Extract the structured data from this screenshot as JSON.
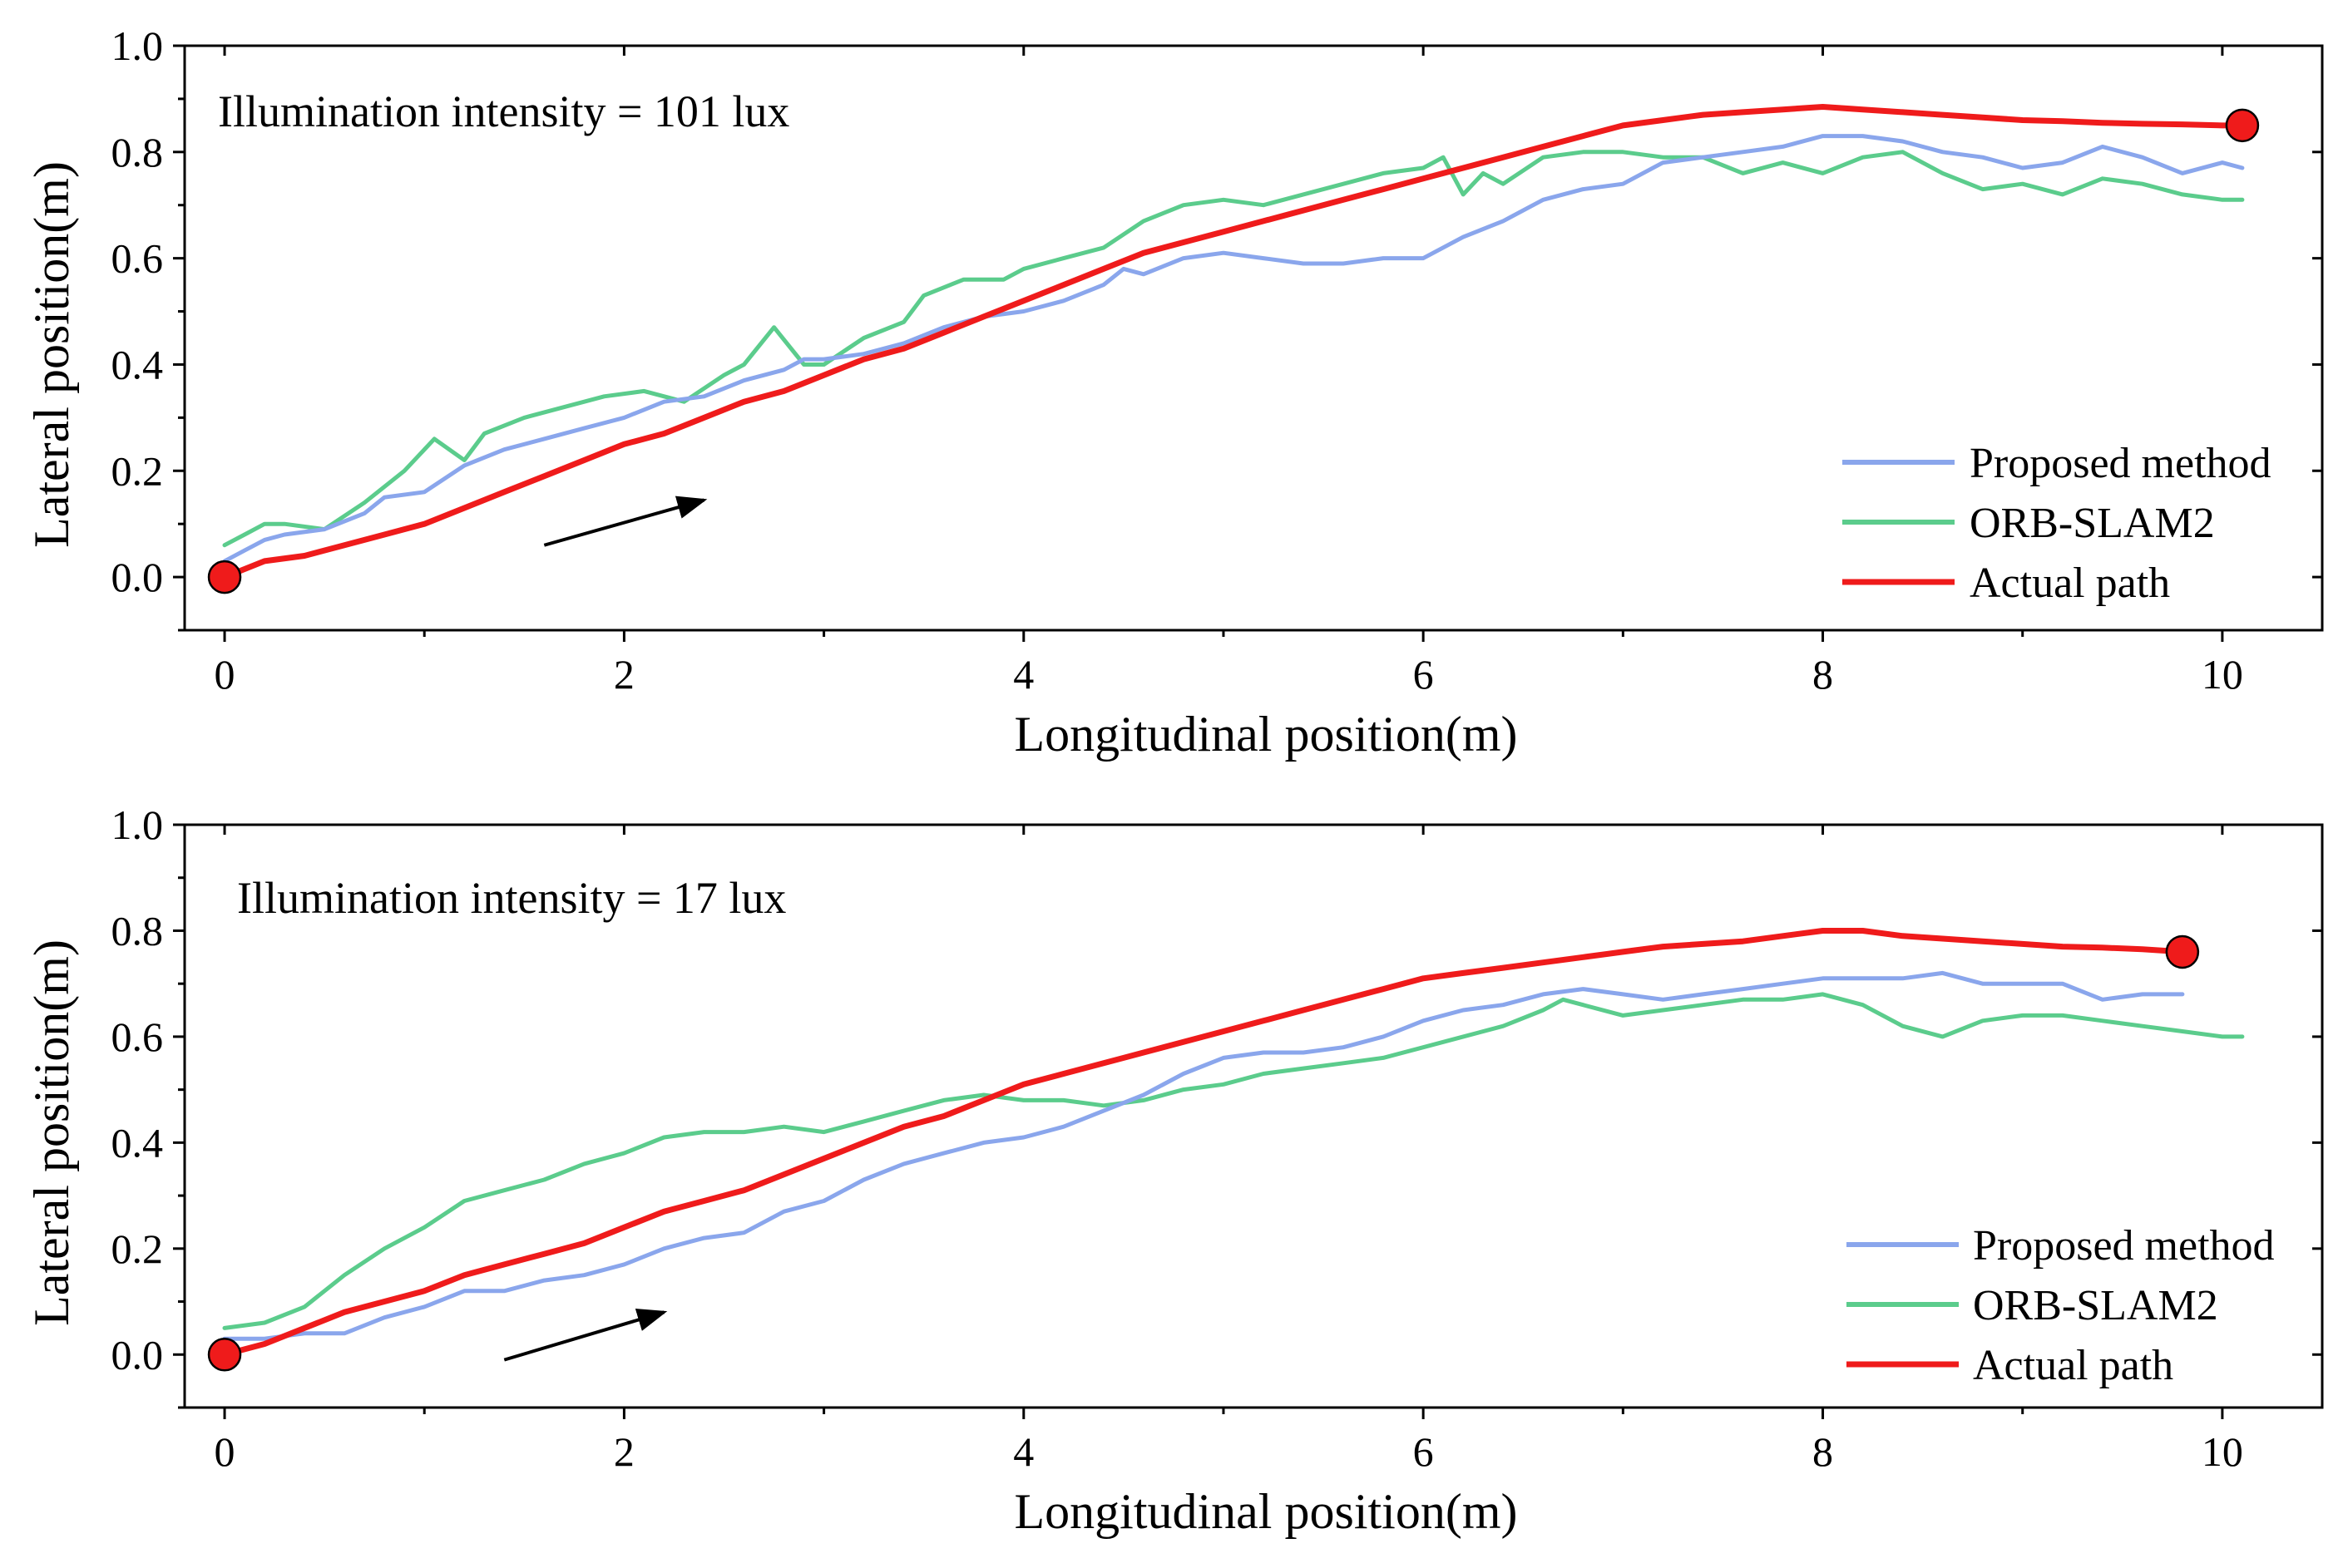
{
  "colors": {
    "proposed": "#8aa6ec",
    "orb": "#5bcc8c",
    "actual": "#ef1b1b",
    "axis": "#000000",
    "arrow": "#000000"
  },
  "chart_data": [
    {
      "type": "line",
      "annotation": "Illumination intensity = 101 lux",
      "xlabel": "Longitudinal position(m)",
      "ylabel": "Lateral position(m)",
      "xlim": [
        -0.2,
        10.5
      ],
      "ylim": [
        -0.1,
        1.0
      ],
      "xticks": [
        0,
        2,
        4,
        6,
        8,
        10
      ],
      "xtick_labels": [
        "0",
        "2",
        "4",
        "6",
        "8",
        "10"
      ],
      "yticks": [
        0.0,
        0.2,
        0.4,
        0.6,
        0.8,
        1.0
      ],
      "ytick_labels": [
        "0.0",
        "0.2",
        "0.4",
        "0.6",
        "0.8",
        "1.0"
      ],
      "legend_position": "bottom-right",
      "legend": [
        "Proposed method",
        "ORB-SLAM2",
        "Actual path"
      ],
      "direction_arrow": {
        "from": [
          1.6,
          0.06
        ],
        "to": [
          2.4,
          0.145
        ]
      },
      "markers": [
        {
          "x": 0.0,
          "y": 0.0
        },
        {
          "x": 10.1,
          "y": 0.85
        }
      ],
      "series": [
        {
          "name": "Proposed method",
          "key": "proposed",
          "x": [
            0.0,
            0.1,
            0.2,
            0.3,
            0.5,
            0.7,
            0.8,
            1.0,
            1.2,
            1.4,
            1.6,
            1.8,
            2.0,
            2.2,
            2.4,
            2.6,
            2.8,
            2.9,
            3.0,
            3.2,
            3.4,
            3.6,
            3.8,
            4.0,
            4.2,
            4.4,
            4.5,
            4.6,
            4.8,
            5.0,
            5.2,
            5.4,
            5.6,
            5.8,
            6.0,
            6.2,
            6.4,
            6.6,
            6.8,
            7.0,
            7.2,
            7.4,
            7.6,
            7.8,
            8.0,
            8.2,
            8.4,
            8.6,
            8.8,
            9.0,
            9.2,
            9.4,
            9.6,
            9.8,
            10.0,
            10.1
          ],
          "y": [
            0.03,
            0.05,
            0.07,
            0.08,
            0.09,
            0.12,
            0.15,
            0.16,
            0.21,
            0.24,
            0.26,
            0.28,
            0.3,
            0.33,
            0.34,
            0.37,
            0.39,
            0.41,
            0.41,
            0.42,
            0.44,
            0.47,
            0.49,
            0.5,
            0.52,
            0.55,
            0.58,
            0.57,
            0.6,
            0.61,
            0.6,
            0.59,
            0.59,
            0.6,
            0.6,
            0.64,
            0.67,
            0.71,
            0.73,
            0.74,
            0.78,
            0.79,
            0.8,
            0.81,
            0.83,
            0.83,
            0.82,
            0.8,
            0.79,
            0.77,
            0.78,
            0.81,
            0.79,
            0.76,
            0.78,
            0.77
          ]
        },
        {
          "name": "ORB-SLAM2",
          "key": "orb",
          "x": [
            0.0,
            0.1,
            0.2,
            0.3,
            0.5,
            0.7,
            0.9,
            1.05,
            1.2,
            1.3,
            1.5,
            1.7,
            1.9,
            2.1,
            2.3,
            2.5,
            2.6,
            2.75,
            2.9,
            3.0,
            3.2,
            3.4,
            3.5,
            3.7,
            3.9,
            4.0,
            4.2,
            4.4,
            4.6,
            4.8,
            5.0,
            5.2,
            5.4,
            5.6,
            5.8,
            6.0,
            6.1,
            6.2,
            6.3,
            6.4,
            6.6,
            6.8,
            7.0,
            7.2,
            7.4,
            7.6,
            7.8,
            8.0,
            8.2,
            8.4,
            8.6,
            8.8,
            9.0,
            9.2,
            9.4,
            9.6,
            9.8,
            10.0,
            10.1
          ],
          "y": [
            0.06,
            0.08,
            0.1,
            0.1,
            0.09,
            0.14,
            0.2,
            0.26,
            0.22,
            0.27,
            0.3,
            0.32,
            0.34,
            0.35,
            0.33,
            0.38,
            0.4,
            0.47,
            0.4,
            0.4,
            0.45,
            0.48,
            0.53,
            0.56,
            0.56,
            0.58,
            0.6,
            0.62,
            0.67,
            0.7,
            0.71,
            0.7,
            0.72,
            0.74,
            0.76,
            0.77,
            0.79,
            0.72,
            0.76,
            0.74,
            0.79,
            0.8,
            0.8,
            0.79,
            0.79,
            0.76,
            0.78,
            0.76,
            0.79,
            0.8,
            0.76,
            0.73,
            0.74,
            0.72,
            0.75,
            0.74,
            0.72,
            0.71,
            0.71
          ]
        },
        {
          "name": "Actual path",
          "key": "actual",
          "x": [
            0.0,
            0.2,
            0.4,
            0.6,
            0.8,
            1.0,
            1.2,
            1.4,
            1.6,
            1.8,
            2.0,
            2.2,
            2.4,
            2.6,
            2.8,
            3.0,
            3.2,
            3.4,
            3.6,
            3.8,
            4.0,
            4.2,
            4.4,
            4.6,
            4.8,
            5.0,
            5.2,
            5.4,
            5.6,
            5.8,
            6.0,
            6.2,
            6.4,
            6.6,
            6.8,
            7.0,
            7.2,
            7.4,
            7.6,
            7.8,
            8.0,
            8.2,
            8.4,
            8.6,
            8.8,
            9.0,
            9.2,
            9.4,
            9.6,
            9.8,
            10.0,
            10.1
          ],
          "y": [
            0.0,
            0.03,
            0.04,
            0.06,
            0.08,
            0.1,
            0.13,
            0.16,
            0.19,
            0.22,
            0.25,
            0.27,
            0.3,
            0.33,
            0.35,
            0.38,
            0.41,
            0.43,
            0.46,
            0.49,
            0.52,
            0.55,
            0.58,
            0.61,
            0.63,
            0.65,
            0.67,
            0.69,
            0.71,
            0.73,
            0.75,
            0.77,
            0.79,
            0.81,
            0.83,
            0.85,
            0.86,
            0.87,
            0.875,
            0.88,
            0.885,
            0.88,
            0.875,
            0.87,
            0.865,
            0.86,
            0.858,
            0.855,
            0.853,
            0.852,
            0.85,
            0.85
          ]
        }
      ]
    },
    {
      "type": "line",
      "annotation": "Illumination intensity = 17 lux",
      "xlabel": "Longitudinal position(m)",
      "ylabel": "Lateral position(m)",
      "xlim": [
        -0.2,
        10.5
      ],
      "ylim": [
        -0.1,
        1.0
      ],
      "xticks": [
        0,
        2,
        4,
        6,
        8,
        10
      ],
      "xtick_labels": [
        "0",
        "2",
        "4",
        "6",
        "8",
        "10"
      ],
      "yticks": [
        0.0,
        0.2,
        0.4,
        0.6,
        0.8,
        1.0
      ],
      "ytick_labels": [
        "0.0",
        "0.2",
        "0.4",
        "0.6",
        "0.8",
        "1.0"
      ],
      "legend_position": "bottom-right",
      "legend": [
        "Proposed method",
        "ORB-SLAM2",
        "Actual path"
      ],
      "direction_arrow": {
        "from": [
          1.4,
          -0.01
        ],
        "to": [
          2.2,
          0.08
        ]
      },
      "markers": [
        {
          "x": 0.0,
          "y": 0.0
        },
        {
          "x": 9.8,
          "y": 0.76
        }
      ],
      "series": [
        {
          "name": "Proposed method",
          "key": "proposed",
          "x": [
            0.0,
            0.2,
            0.4,
            0.6,
            0.8,
            1.0,
            1.2,
            1.4,
            1.6,
            1.8,
            2.0,
            2.2,
            2.4,
            2.6,
            2.8,
            3.0,
            3.2,
            3.4,
            3.6,
            3.8,
            4.0,
            4.2,
            4.4,
            4.6,
            4.8,
            5.0,
            5.2,
            5.4,
            5.6,
            5.8,
            6.0,
            6.2,
            6.4,
            6.6,
            6.8,
            7.0,
            7.2,
            7.4,
            7.6,
            7.8,
            8.0,
            8.2,
            8.4,
            8.6,
            8.8,
            9.0,
            9.2,
            9.4,
            9.6,
            9.8
          ],
          "y": [
            0.03,
            0.03,
            0.04,
            0.04,
            0.07,
            0.09,
            0.12,
            0.12,
            0.14,
            0.15,
            0.17,
            0.2,
            0.22,
            0.23,
            0.27,
            0.29,
            0.33,
            0.36,
            0.38,
            0.4,
            0.41,
            0.43,
            0.46,
            0.49,
            0.53,
            0.56,
            0.57,
            0.57,
            0.58,
            0.6,
            0.63,
            0.65,
            0.66,
            0.68,
            0.69,
            0.68,
            0.67,
            0.68,
            0.69,
            0.7,
            0.71,
            0.71,
            0.71,
            0.72,
            0.7,
            0.7,
            0.7,
            0.67,
            0.68,
            0.68
          ]
        },
        {
          "name": "ORB-SLAM2",
          "key": "orb",
          "x": [
            0.0,
            0.2,
            0.4,
            0.6,
            0.8,
            1.0,
            1.2,
            1.4,
            1.6,
            1.8,
            2.0,
            2.2,
            2.4,
            2.6,
            2.8,
            3.0,
            3.2,
            3.4,
            3.6,
            3.8,
            4.0,
            4.2,
            4.4,
            4.6,
            4.8,
            5.0,
            5.2,
            5.4,
            5.6,
            5.8,
            6.0,
            6.2,
            6.4,
            6.6,
            6.7,
            6.8,
            7.0,
            7.2,
            7.4,
            7.6,
            7.8,
            8.0,
            8.2,
            8.4,
            8.6,
            8.8,
            9.0,
            9.2,
            9.4,
            9.6,
            9.8,
            10.0,
            10.1
          ],
          "y": [
            0.05,
            0.06,
            0.09,
            0.15,
            0.2,
            0.24,
            0.29,
            0.31,
            0.33,
            0.36,
            0.38,
            0.41,
            0.42,
            0.42,
            0.43,
            0.42,
            0.44,
            0.46,
            0.48,
            0.49,
            0.48,
            0.48,
            0.47,
            0.48,
            0.5,
            0.51,
            0.53,
            0.54,
            0.55,
            0.56,
            0.58,
            0.6,
            0.62,
            0.65,
            0.67,
            0.66,
            0.64,
            0.65,
            0.66,
            0.67,
            0.67,
            0.68,
            0.66,
            0.62,
            0.6,
            0.63,
            0.64,
            0.64,
            0.63,
            0.62,
            0.61,
            0.6,
            0.6
          ]
        },
        {
          "name": "Actual path",
          "key": "actual",
          "x": [
            0.0,
            0.2,
            0.4,
            0.6,
            0.8,
            1.0,
            1.2,
            1.4,
            1.6,
            1.8,
            2.0,
            2.2,
            2.4,
            2.6,
            2.8,
            3.0,
            3.2,
            3.4,
            3.6,
            3.8,
            4.0,
            4.2,
            4.4,
            4.6,
            4.8,
            5.0,
            5.2,
            5.4,
            5.6,
            5.8,
            6.0,
            6.2,
            6.4,
            6.6,
            6.8,
            7.0,
            7.2,
            7.4,
            7.6,
            7.8,
            8.0,
            8.2,
            8.4,
            8.6,
            8.8,
            9.0,
            9.2,
            9.4,
            9.6,
            9.8
          ],
          "y": [
            0.0,
            0.02,
            0.05,
            0.08,
            0.1,
            0.12,
            0.15,
            0.17,
            0.19,
            0.21,
            0.24,
            0.27,
            0.29,
            0.31,
            0.34,
            0.37,
            0.4,
            0.43,
            0.45,
            0.48,
            0.51,
            0.53,
            0.55,
            0.57,
            0.59,
            0.61,
            0.63,
            0.65,
            0.67,
            0.69,
            0.71,
            0.72,
            0.73,
            0.74,
            0.75,
            0.76,
            0.77,
            0.775,
            0.78,
            0.79,
            0.8,
            0.8,
            0.79,
            0.785,
            0.78,
            0.775,
            0.77,
            0.768,
            0.765,
            0.76
          ]
        }
      ]
    }
  ]
}
